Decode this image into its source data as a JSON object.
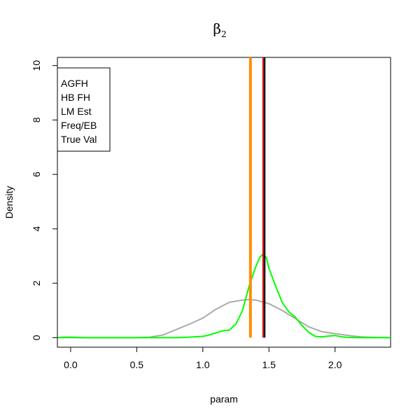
{
  "chart_data": {
    "type": "line",
    "title": "β",
    "title_subscript": "2",
    "xlabel": "param",
    "ylabel": "Density",
    "xlim": [
      -0.1,
      2.42
    ],
    "ylim": [
      -0.35,
      10.3
    ],
    "xticks": [
      0.0,
      0.5,
      1.0,
      1.5,
      2.0
    ],
    "xtick_labels": [
      "0.0",
      "0.5",
      "1.0",
      "1.5",
      "2.0"
    ],
    "yticks": [
      0,
      2,
      4,
      6,
      8,
      10
    ],
    "ytick_labels": [
      "0",
      "2",
      "4",
      "6",
      "8",
      "10"
    ],
    "grid": false,
    "legend": {
      "placement": "top-left",
      "entries": [
        "AGFH",
        "HB FH",
        "LM Est",
        "Freq/EB",
        "True Val"
      ]
    },
    "series": [
      {
        "color": "#aaaaaa",
        "x": [
          -0.1,
          0.2,
          0.5,
          0.6,
          0.7,
          0.8,
          0.9,
          1.0,
          1.1,
          1.2,
          1.3,
          1.35,
          1.4,
          1.5,
          1.6,
          1.7,
          1.8,
          1.9,
          2.0,
          2.1,
          2.2,
          2.3,
          2.42
        ],
        "y": [
          0.0,
          0.0,
          0.0,
          0.02,
          0.1,
          0.3,
          0.5,
          0.72,
          1.05,
          1.3,
          1.38,
          1.4,
          1.38,
          1.25,
          1.0,
          0.7,
          0.4,
          0.22,
          0.15,
          0.08,
          0.03,
          0.01,
          0.0
        ]
      },
      {
        "color": "#00ff00",
        "x": [
          -0.1,
          -0.05,
          0.0,
          0.1,
          0.5,
          0.8,
          0.9,
          1.0,
          1.05,
          1.1,
          1.15,
          1.2,
          1.25,
          1.3,
          1.35,
          1.4,
          1.43,
          1.45,
          1.48,
          1.5,
          1.55,
          1.6,
          1.65,
          1.7,
          1.75,
          1.8,
          1.85,
          1.9,
          1.95,
          2.0,
          2.05,
          2.1,
          2.2,
          2.3,
          2.42
        ],
        "y": [
          0.0,
          0.02,
          0.02,
          0.0,
          0.0,
          0.0,
          0.02,
          0.05,
          0.1,
          0.18,
          0.25,
          0.28,
          0.5,
          1.0,
          1.9,
          2.6,
          2.95,
          3.05,
          2.95,
          2.55,
          1.9,
          1.3,
          0.95,
          0.75,
          0.45,
          0.2,
          0.05,
          0.03,
          0.06,
          0.08,
          0.03,
          0.01,
          0.0,
          0.0,
          0.0
        ]
      }
    ],
    "vlines": [
      {
        "x": 1.36,
        "color": "#ff8c00",
        "width": 4
      },
      {
        "x": 1.456,
        "color": "#cc0000",
        "width": 2
      },
      {
        "x": 1.468,
        "color": "#000000",
        "width": 2
      }
    ]
  }
}
